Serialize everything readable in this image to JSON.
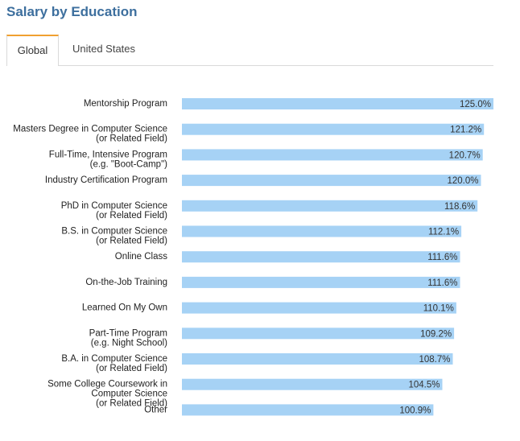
{
  "header": {
    "title": "Salary by Education"
  },
  "tabs": [
    {
      "label": "Global",
      "active": true
    },
    {
      "label": "United States",
      "active": false
    }
  ],
  "colors": {
    "title": "#3d6f9e",
    "bar": "#a6d2f5",
    "tab_accent": "#f0a030"
  },
  "chart_data": {
    "type": "bar",
    "orientation": "horizontal",
    "title": "",
    "xlabel": "",
    "ylabel": "",
    "value_suffix": "%",
    "xlim": [
      0,
      125
    ],
    "categories": [
      [
        "Mentorship Program"
      ],
      [
        "Masters Degree in Computer Science",
        "(or Related Field)"
      ],
      [
        "Full-Time, Intensive Program",
        "(e.g. \"Boot-Camp\")"
      ],
      [
        "Industry Certification Program"
      ],
      [
        "PhD in Computer Science",
        "(or Related Field)"
      ],
      [
        "B.S. in Computer Science",
        "(or Related Field)"
      ],
      [
        "Online Class"
      ],
      [
        "On-the-Job Training"
      ],
      [
        "Learned On My Own"
      ],
      [
        "Part-Time Program",
        "(e.g. Night School)"
      ],
      [
        "B.A. in Computer Science",
        "(or Related Field)"
      ],
      [
        "Some College Coursework in",
        "Computer Science",
        "(or Related Field)"
      ],
      [
        "Other"
      ]
    ],
    "values": [
      125.0,
      121.2,
      120.7,
      120.0,
      118.6,
      112.1,
      111.6,
      111.6,
      110.1,
      109.2,
      108.7,
      104.5,
      100.9
    ],
    "value_labels": [
      "125.0%",
      "121.2%",
      "120.7%",
      "120.0%",
      "118.6%",
      "112.1%",
      "111.6%",
      "111.6%",
      "110.1%",
      "109.2%",
      "108.7%",
      "104.5%",
      "100.9%"
    ],
    "grid": false,
    "legend": "none"
  }
}
